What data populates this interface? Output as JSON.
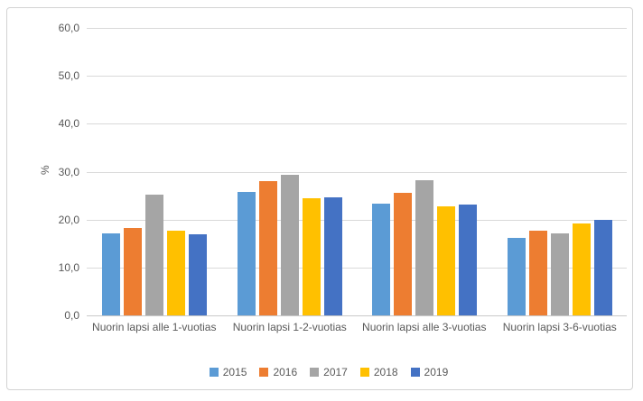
{
  "chart_data": {
    "type": "bar",
    "ylabel": "%",
    "categories": [
      "Nuorin lapsi alle 1-vuotias",
      "Nuorin lapsi 1-2-vuotias",
      "Nuorin lapsi alle 3-vuotias",
      "Nuorin lapsi 3-6-vuotias"
    ],
    "series": [
      {
        "name": "2015",
        "color": "#5B9BD5",
        "values": [
          17.1,
          25.7,
          23.4,
          16.1
        ]
      },
      {
        "name": "2016",
        "color": "#ED7D31",
        "values": [
          18.2,
          28.0,
          25.5,
          17.7
        ]
      },
      {
        "name": "2017",
        "color": "#A5A5A5",
        "values": [
          25.2,
          29.3,
          28.3,
          17.1
        ]
      },
      {
        "name": "2018",
        "color": "#FFC000",
        "values": [
          17.7,
          24.4,
          22.8,
          19.1
        ]
      },
      {
        "name": "2019",
        "color": "#4472C4",
        "values": [
          16.9,
          24.7,
          23.2,
          20.0
        ]
      }
    ],
    "ylim": [
      0,
      60
    ],
    "yticks": {
      "values": [
        0,
        10,
        20,
        30,
        40,
        50,
        60
      ],
      "labels": [
        "0,0",
        "10,0",
        "20,0",
        "30,0",
        "40,0",
        "50,0",
        "60,0"
      ]
    },
    "grid": true,
    "legend_position": "bottom"
  },
  "colors": {
    "text": "#595959",
    "gridline": "#D9D9D9",
    "axis_line": "#C9C9C9",
    "frame_border": "#D3D3D3",
    "background": "#FFFFFF"
  }
}
